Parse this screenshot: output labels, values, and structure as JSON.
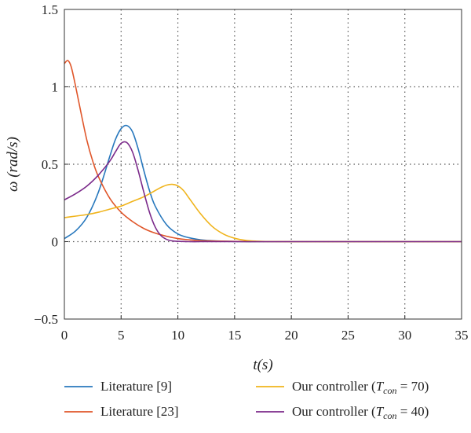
{
  "chart_data": {
    "type": "line",
    "xlabel": "t(s)",
    "ylabel": "ω (rad/s)",
    "xlim": [
      0,
      35
    ],
    "ylim": [
      -0.5,
      1.5
    ],
    "xticks": [
      0,
      5,
      10,
      15,
      20,
      25,
      30,
      35
    ],
    "yticks": [
      -0.5,
      0,
      0.5,
      1,
      1.5
    ],
    "xtick_labels": [
      "0",
      "5",
      "10",
      "15",
      "20",
      "25",
      "30",
      "35"
    ],
    "ytick_labels": [
      "−0.5",
      "0",
      "0.5",
      "1",
      "1.5"
    ],
    "grid": "dotted",
    "legend_position": "bottom",
    "series": [
      {
        "name": "Literature [9]",
        "color": "#2878bd",
        "x": [
          0,
          1,
          2,
          3,
          4,
          4.5,
          5,
          5.5,
          6,
          6.5,
          7,
          7.5,
          8,
          9,
          10,
          11,
          12,
          13,
          14,
          15,
          16,
          17,
          20,
          25,
          30,
          35
        ],
        "y": [
          0.02,
          0.07,
          0.16,
          0.32,
          0.55,
          0.66,
          0.73,
          0.75,
          0.71,
          0.6,
          0.46,
          0.33,
          0.23,
          0.11,
          0.05,
          0.025,
          0.012,
          0.006,
          0.003,
          0.001,
          0,
          0,
          0,
          0,
          0,
          0
        ]
      },
      {
        "name": "Literature [23]",
        "color": "#e0562a",
        "x": [
          0,
          0.3,
          0.6,
          1,
          1.5,
          2,
          2.5,
          3,
          4,
          5,
          6,
          7,
          8,
          9,
          10,
          11,
          12,
          14,
          16,
          20,
          25,
          30,
          35
        ],
        "y": [
          1.15,
          1.17,
          1.13,
          1.0,
          0.82,
          0.65,
          0.52,
          0.42,
          0.28,
          0.19,
          0.13,
          0.085,
          0.055,
          0.035,
          0.02,
          0.012,
          0.007,
          0.003,
          0.001,
          0,
          0,
          0,
          0
        ]
      },
      {
        "name": "Our controller (Tcon = 70)",
        "color": "#f0b41c",
        "x": [
          0,
          1,
          2,
          3,
          4,
          5,
          6,
          7,
          8,
          8.5,
          9,
          9.5,
          10,
          10.5,
          11,
          12,
          13,
          14,
          15,
          16,
          17,
          18,
          20,
          25,
          30,
          35
        ],
        "y": [
          0.155,
          0.165,
          0.175,
          0.19,
          0.21,
          0.23,
          0.26,
          0.29,
          0.33,
          0.35,
          0.365,
          0.37,
          0.36,
          0.33,
          0.28,
          0.18,
          0.1,
          0.05,
          0.022,
          0.008,
          0.003,
          0.001,
          0,
          0,
          0,
          0
        ]
      },
      {
        "name": "Our controller (Tcon = 40)",
        "color": "#7b2a8a",
        "x": [
          0,
          1,
          2,
          3,
          4,
          4.5,
          5,
          5.5,
          6,
          6.5,
          7,
          7.5,
          8,
          8.5,
          9,
          9.5,
          10,
          11,
          12,
          14,
          20,
          25,
          30,
          35
        ],
        "y": [
          0.27,
          0.31,
          0.36,
          0.43,
          0.52,
          0.58,
          0.635,
          0.64,
          0.58,
          0.46,
          0.32,
          0.19,
          0.095,
          0.04,
          0.015,
          0.005,
          0.002,
          0,
          0,
          0,
          0,
          0,
          0,
          0
        ]
      }
    ],
    "legend": [
      {
        "text": "Literature [9]",
        "color": "#2878bd"
      },
      {
        "text": "Literature [23]",
        "color": "#e0562a"
      },
      {
        "text": "Our controller (",
        "sym": "T",
        "sub": "con",
        "tail": " = 70)",
        "color": "#f0b41c"
      },
      {
        "text": "Our controller (",
        "sym": "T",
        "sub": "con",
        "tail": " = 40)",
        "color": "#7b2a8a"
      }
    ]
  }
}
